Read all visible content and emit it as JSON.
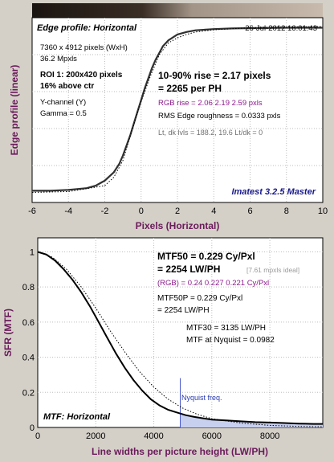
{
  "chart_data": [
    {
      "type": "line",
      "title": "Edge profile: Horizontal",
      "timestamp": "26-Jul-2012 16:01:43",
      "xlabel": "Pixels (Horizontal)",
      "ylabel": "Edge profile (linear)",
      "xlim": [
        -6,
        10
      ],
      "xticks": [
        "-6",
        "-4",
        "-2",
        "0",
        "2",
        "4",
        "6",
        "8",
        "10"
      ],
      "info_lines": [
        "7360 x 4912 pixels (WxH)",
        "36.2 Mpxls"
      ],
      "roi_lines": [
        "ROI 1:  200x420 pixels",
        "16% above ctr"
      ],
      "channel_lines": [
        "Y-channel  (Y)",
        "Gamma = 0.5"
      ],
      "rise_lines": [
        "10-90% rise = 2.17 pixels",
        "= 2265 per PH"
      ],
      "rgb_rise": "RGB rise = 2.06  2.19  2.59 pxls",
      "roughness": "RMS Edge roughness = 0.0333 pxls",
      "levels": "Lt, dk lvls = 188.2, 19.6   Lt/dk = 0",
      "software": "Imatest 3.2.5 Master",
      "series": [
        {
          "x": [
            -6,
            -5,
            -4,
            -3,
            -2.5,
            -2,
            -1.5,
            -1.2,
            -1,
            -0.8,
            -0.6,
            -0.4,
            -0.2,
            0,
            0.2,
            0.4,
            0.6,
            0.8,
            1,
            1.2,
            1.5,
            2,
            2.5,
            3,
            4,
            5,
            6,
            8,
            10
          ],
          "y": [
            0.02,
            0.02,
            0.025,
            0.035,
            0.05,
            0.08,
            0.13,
            0.18,
            0.23,
            0.29,
            0.35,
            0.42,
            0.49,
            0.56,
            0.63,
            0.69,
            0.75,
            0.8,
            0.84,
            0.88,
            0.915,
            0.95,
            0.965,
            0.975,
            0.982,
            0.986,
            0.988,
            0.99,
            0.99
          ]
        },
        {
          "x": [
            -6,
            -4,
            -2,
            -1.5,
            -1,
            -0.5,
            0,
            0.5,
            1,
            1.5,
            2,
            2.5,
            3,
            4,
            6,
            8,
            10
          ],
          "y": [
            0.01,
            0.015,
            0.05,
            0.1,
            0.2,
            0.38,
            0.55,
            0.7,
            0.83,
            0.9,
            0.93,
            0.95,
            0.965,
            0.978,
            0.99,
            0.995,
            0.997
          ]
        }
      ]
    },
    {
      "type": "line",
      "title": "MTF: Horizontal",
      "xlabel": "Line widths per picture height (LW/PH)",
      "ylabel": "SFR (MTF)",
      "xlim": [
        0,
        9824
      ],
      "ylim": [
        0,
        1
      ],
      "xticks": [
        "0",
        "2000",
        "4000",
        "6000",
        "8000"
      ],
      "yticks": [
        "0",
        "0.2",
        "0.4",
        "0.6",
        "0.8",
        "1"
      ],
      "mtf50": [
        "MTF50 = 0.229 Cy/Pxl",
        "= 2254 LW/PH"
      ],
      "ideal": "[7.61 mpxls ideal]",
      "rgb_mtf50": "(RGB) = 0.24  0.227  0.221 Cy/Pxl",
      "mtf50p": [
        "MTF50P = 0.229 Cy/Pxl",
        "= 2254 LW/PH"
      ],
      "mtf30": "MTF30 = 3135 LW/PH",
      "mtf_nyquist": "MTF at Nyquist = 0.0982",
      "nyquist_label": "Nyquist freq.",
      "nyquist_x": 4912,
      "series": [
        {
          "x": [
            0,
            300,
            600,
            900,
            1200,
            1500,
            1800,
            2100,
            2400,
            2700,
            3000,
            3300,
            3600,
            3900,
            4200,
            4500,
            4800,
            5100,
            5400,
            5700,
            6000,
            6500,
            7000,
            7500,
            8000,
            8500,
            9000,
            9500,
            9824
          ],
          "y": [
            1,
            0.985,
            0.95,
            0.9,
            0.84,
            0.77,
            0.69,
            0.6,
            0.51,
            0.42,
            0.34,
            0.27,
            0.21,
            0.16,
            0.125,
            0.1,
            0.085,
            0.07,
            0.06,
            0.052,
            0.045,
            0.04,
            0.035,
            0.03,
            0.028,
            0.025,
            0.022,
            0.02,
            0.02
          ]
        },
        {
          "x": [
            0,
            500,
            1000,
            1500,
            2000,
            2500,
            3000,
            3500,
            4000,
            4500,
            5000,
            5500,
            6000,
            7000,
            8000,
            9000,
            9824
          ],
          "y": [
            1,
            0.97,
            0.9,
            0.8,
            0.68,
            0.55,
            0.43,
            0.32,
            0.23,
            0.16,
            0.11,
            0.075,
            0.05,
            0.025,
            0.012,
            0.006,
            0.004
          ]
        }
      ]
    }
  ]
}
